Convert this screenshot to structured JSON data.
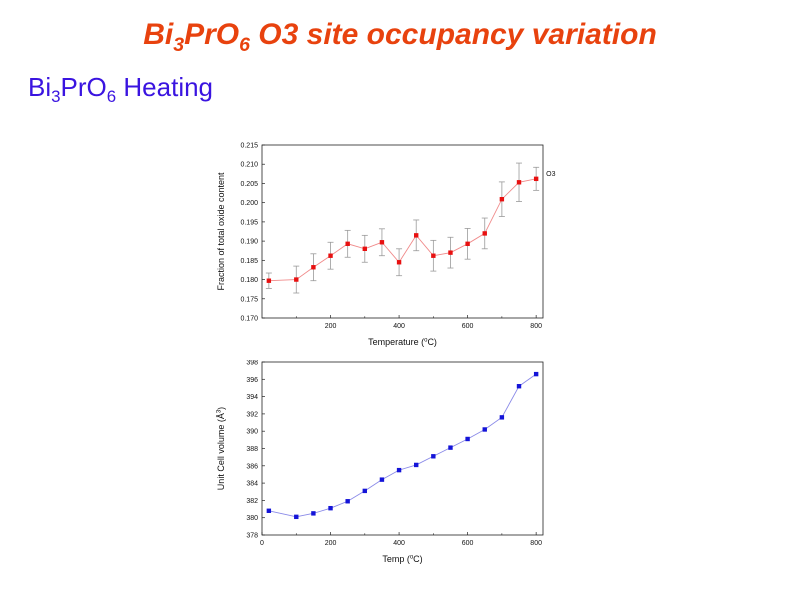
{
  "slide": {
    "title": {
      "main": "Bi",
      "sub1": "3",
      "mid": "PrO",
      "sub2": "6",
      "rest": " O3 site occupancy variation"
    },
    "subtitle": {
      "main": "Bi",
      "sub1": "3",
      "mid": "PrO",
      "sub2": "6",
      "rest": " Heating"
    }
  },
  "colors": {
    "title": "#e8420e",
    "subtitle": "#3a14e0",
    "series1_marker": "#e81010",
    "series1_line": "#f08a8a",
    "series2_marker": "#1414d8",
    "series2_line": "#8a8ae8",
    "error_bar": "#9a9a9a"
  },
  "chart_data": [
    {
      "type": "line",
      "title": "",
      "xlabel_pre": "Temperature (",
      "xlabel_sup": "o",
      "xlabel_post": "C)",
      "ylabel": "Fraction of total oxide content",
      "xlim": [
        0,
        820
      ],
      "ylim": [
        0.17,
        0.215
      ],
      "xticks": [
        200,
        400,
        600,
        800
      ],
      "yticks": [
        0.17,
        0.175,
        0.18,
        0.185,
        0.19,
        0.195,
        0.2,
        0.205,
        0.21,
        0.215
      ],
      "ytick_labels": [
        "0.170",
        "0.175",
        "0.180",
        "0.185",
        "0.190",
        "0.195",
        "0.200",
        "0.205",
        "0.210",
        "0.215"
      ],
      "legend": "O3",
      "legend_position": "top-right",
      "series": [
        {
          "name": "O3",
          "x": [
            20,
            100,
            150,
            200,
            250,
            300,
            350,
            400,
            450,
            500,
            550,
            600,
            650,
            700,
            750,
            800
          ],
          "y": [
            0.1797,
            0.18,
            0.1832,
            0.1862,
            0.1893,
            0.188,
            0.1897,
            0.1845,
            0.1915,
            0.1862,
            0.187,
            0.1893,
            0.192,
            0.2009,
            0.2053,
            0.2062
          ],
          "err": [
            0.002,
            0.0035,
            0.0035,
            0.0035,
            0.0035,
            0.0035,
            0.0035,
            0.0035,
            0.004,
            0.004,
            0.004,
            0.004,
            0.004,
            0.0045,
            0.005,
            0.003
          ]
        }
      ]
    },
    {
      "type": "line",
      "title": "",
      "xlabel_pre": "Temp (",
      "xlabel_sup": "o",
      "xlabel_post": "C)",
      "ylabel_pre": "Unit Cell volume (Å",
      "ylabel_sup": "3",
      "ylabel_post": ")",
      "xlim": [
        0,
        820
      ],
      "ylim": [
        378,
        398
      ],
      "xticks": [
        0,
        200,
        400,
        600,
        800
      ],
      "yticks": [
        378,
        380,
        382,
        384,
        386,
        388,
        390,
        392,
        394,
        396,
        398
      ],
      "series": [
        {
          "name": "Unit Cell volume",
          "x": [
            20,
            100,
            150,
            200,
            250,
            300,
            350,
            400,
            450,
            500,
            550,
            600,
            650,
            700,
            750,
            800
          ],
          "y": [
            380.8,
            380.1,
            380.5,
            381.1,
            381.9,
            383.1,
            384.4,
            385.5,
            386.1,
            387.1,
            388.1,
            389.1,
            390.2,
            391.6,
            395.2,
            396.6
          ]
        }
      ]
    }
  ]
}
